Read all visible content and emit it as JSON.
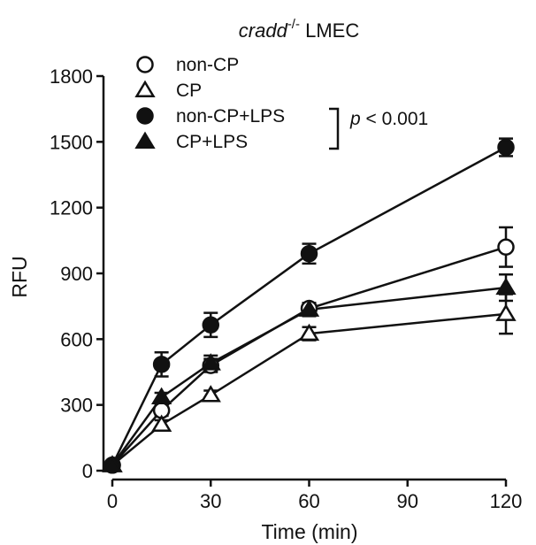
{
  "chart_data": {
    "type": "line",
    "title_italic": "cradd",
    "title_superscript": "-/-",
    "title_rest": " LMEC",
    "xlabel": "Time (min)",
    "ylabel": "RFU",
    "xlim": [
      0,
      120
    ],
    "ylim": [
      0,
      1800
    ],
    "x_ticks": [
      "0",
      "30",
      "60",
      "90",
      "120"
    ],
    "y_ticks": [
      "0",
      "300",
      "600",
      "900",
      "1200",
      "1500",
      "1800"
    ],
    "x": [
      0,
      15,
      30,
      60,
      120
    ],
    "series": [
      {
        "name": "non-CP",
        "marker": "circle-open",
        "values": [
          25,
          275,
          480,
          740,
          1020
        ],
        "errors": [
          10,
          25,
          30,
          25,
          90
        ]
      },
      {
        "name": "CP",
        "marker": "triangle-open",
        "values": [
          25,
          210,
          345,
          625,
          715
        ],
        "errors": [
          10,
          20,
          20,
          30,
          90
        ]
      },
      {
        "name": "non-CP+LPS",
        "marker": "circle-filled",
        "values": [
          25,
          485,
          665,
          990,
          1475
        ],
        "errors": [
          10,
          55,
          55,
          45,
          40
        ]
      },
      {
        "name": "CP+LPS",
        "marker": "triangle-filled",
        "values": [
          25,
          335,
          490,
          735,
          835
        ],
        "errors": [
          10,
          20,
          35,
          30,
          60
        ]
      }
    ],
    "significance": {
      "label_p": "p",
      "label_rest": " < 0.001"
    },
    "grid": false,
    "legend_position": "top-left"
  }
}
